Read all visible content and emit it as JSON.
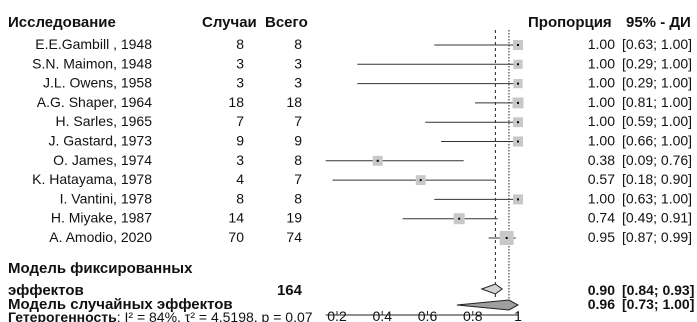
{
  "headers": {
    "study": "Исследование",
    "events": "Случаи",
    "total": "Всего",
    "proportion": "Пропорция",
    "ci": "95% - ДИ"
  },
  "studies": [
    {
      "author": "E.E.Gambill , 1948",
      "events": "8",
      "total": "8",
      "prop_text": "1.00",
      "ci_text": "[0.63; 1.00]"
    },
    {
      "author": "S.N. Maimon, 1948",
      "events": "3",
      "total": "3",
      "prop_text": "1.00",
      "ci_text": "[0.29; 1.00]"
    },
    {
      "author": "J.L. Owens, 1958",
      "events": "3",
      "total": "3",
      "prop_text": "1.00",
      "ci_text": "[0.29; 1.00]"
    },
    {
      "author": "A.G. Shaper, 1964",
      "events": "18",
      "total": "18",
      "prop_text": "1.00",
      "ci_text": "[0.81; 1.00]"
    },
    {
      "author": "H. Sarles, 1965",
      "events": "7",
      "total": "7",
      "prop_text": "1.00",
      "ci_text": "[0.59; 1.00]"
    },
    {
      "author": "J. Gastard, 1973",
      "events": "9",
      "total": "9",
      "prop_text": "1.00",
      "ci_text": "[0.66; 1.00]"
    },
    {
      "author": "O. James, 1974",
      "events": "3",
      "total": "8",
      "prop_text": "0.38",
      "ci_text": "[0.09; 0.76]"
    },
    {
      "author": "K. Hatayama, 1978",
      "events": "4",
      "total": "7",
      "prop_text": "0.57",
      "ci_text": "[0.18; 0.90]"
    },
    {
      "author": "I. Vantini, 1978",
      "events": "8",
      "total": "8",
      "prop_text": "1.00",
      "ci_text": "[0.63; 1.00]"
    },
    {
      "author": "H. Miyake, 1987",
      "events": "14",
      "total": "19",
      "prop_text": "0.74",
      "ci_text": "[0.49; 0.91]"
    },
    {
      "author": "A. Amodio, 2020",
      "events": "70",
      "total": "74",
      "prop_text": "0.95",
      "ci_text": "[0.87; 0.99]"
    }
  ],
  "fixed": {
    "label_line1": "Модель фиксированных",
    "label_line2": "эффектов",
    "total": "164",
    "prop_text": "0.90",
    "ci_text": "[0.84; 0.93]"
  },
  "random": {
    "label": "Модель случайных эффектов",
    "prop_text": "0.96",
    "ci_text": "[0.73; 1.00]"
  },
  "heterogeneity": {
    "prefix": "Гетерогенность",
    "stats": ": I² = 84%, τ² = 4.5198, p = 0.07"
  },
  "chart_data": {
    "type": "forest",
    "xlim": [
      0.15,
      1.0
    ],
    "x_ticks": [
      0.2,
      0.4,
      0.6,
      0.8,
      1
    ],
    "x_tick_labels": [
      "0.2",
      "0.4",
      "0.6",
      "0.8",
      "1"
    ],
    "studies": [
      {
        "name": "E.E.Gambill , 1948",
        "est": 1.0,
        "lo": 0.63,
        "hi": 1.0,
        "weight": 8
      },
      {
        "name": "S.N. Maimon, 1948",
        "est": 1.0,
        "lo": 0.29,
        "hi": 1.0,
        "weight": 3
      },
      {
        "name": "J.L. Owens, 1958",
        "est": 1.0,
        "lo": 0.29,
        "hi": 1.0,
        "weight": 3
      },
      {
        "name": "A.G. Shaper, 1964",
        "est": 1.0,
        "lo": 0.81,
        "hi": 1.0,
        "weight": 18
      },
      {
        "name": "H. Sarles, 1965",
        "est": 1.0,
        "lo": 0.59,
        "hi": 1.0,
        "weight": 7
      },
      {
        "name": "J. Gastard, 1973",
        "est": 1.0,
        "lo": 0.66,
        "hi": 1.0,
        "weight": 9
      },
      {
        "name": "O. James, 1974",
        "est": 0.38,
        "lo": 0.09,
        "hi": 0.76,
        "weight": 8
      },
      {
        "name": "K. Hatayama, 1978",
        "est": 0.57,
        "lo": 0.18,
        "hi": 0.9,
        "weight": 7
      },
      {
        "name": "I. Vantini, 1978",
        "est": 1.0,
        "lo": 0.63,
        "hi": 1.0,
        "weight": 8
      },
      {
        "name": "H. Miyake, 1987",
        "est": 0.74,
        "lo": 0.49,
        "hi": 0.91,
        "weight": 19
      },
      {
        "name": "A. Amodio, 2020",
        "est": 0.95,
        "lo": 0.87,
        "hi": 0.99,
        "weight": 74
      }
    ],
    "fixed": {
      "est": 0.9,
      "lo": 0.84,
      "hi": 0.93
    },
    "random": {
      "est": 0.96,
      "lo": 0.73,
      "hi": 1.0
    },
    "reference_lines": [
      0.9,
      0.96
    ]
  }
}
